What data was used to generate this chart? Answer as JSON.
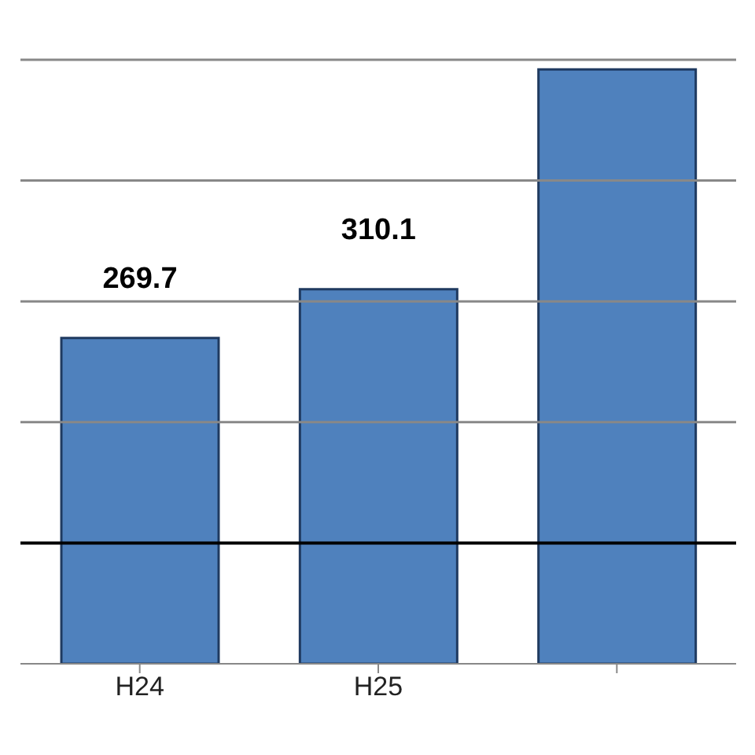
{
  "chart_data": {
    "type": "bar",
    "categories": [
      "H24",
      "H25",
      null
    ],
    "values": [
      269.7,
      310.1,
      492
    ],
    "value_labels": [
      "269.7",
      "310.1",
      null
    ],
    "color": "#4f81bd",
    "ylim": [
      0,
      500
    ],
    "yticks": [
      {
        "value": 100,
        "label": null
      },
      {
        "value": 200,
        "label": null
      },
      {
        "value": 300,
        "label": null
      },
      {
        "value": 400,
        "label": null
      },
      {
        "value": 500,
        "label": null
      }
    ],
    "tick_labels": "x",
    "grid": "y",
    "ref_lines": [
      {
        "axis": "y",
        "value": 100,
        "color": "#000000"
      }
    ]
  }
}
